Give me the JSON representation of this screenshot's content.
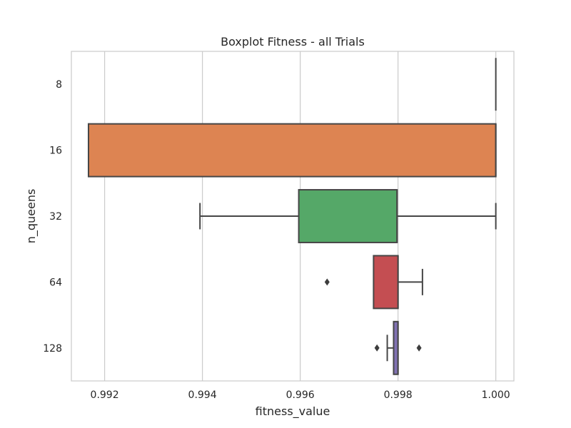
{
  "chart_data": {
    "type": "boxplot",
    "orientation": "horizontal",
    "title": "Boxplot Fitness - all Trials",
    "xlabel": "fitness_value",
    "ylabel": "n_queens",
    "xlim": [
      0.99132,
      1.00037
    ],
    "x_ticks": [
      "0.992",
      "0.994",
      "0.996",
      "0.998",
      "1.000"
    ],
    "x_tick_values": [
      0.992,
      0.994,
      0.996,
      0.998,
      1.0
    ],
    "grid": true,
    "categories": [
      "8",
      "16",
      "32",
      "64",
      "128"
    ],
    "series": [
      {
        "category": "8",
        "whisker_low": 1.0,
        "q1": 1.0,
        "median": 1.0,
        "q3": 1.0,
        "whisker_high": 1.0,
        "outliers": [],
        "color": "#4c72b0"
      },
      {
        "category": "16",
        "whisker_low": 0.99167,
        "q1": 0.99167,
        "median": 1.0,
        "q3": 1.0,
        "whisker_high": 1.0,
        "outliers": [],
        "color": "#dd8452"
      },
      {
        "category": "32",
        "whisker_low": 0.99395,
        "q1": 0.99597,
        "median": 0.99798,
        "q3": 0.99798,
        "whisker_high": 1.0,
        "outliers": [],
        "color": "#55a868"
      },
      {
        "category": "64",
        "whisker_low": 0.9975,
        "q1": 0.9975,
        "median": 0.998,
        "q3": 0.998,
        "whisker_high": 0.9985,
        "outliers": [
          0.99655
        ],
        "color": "#c44e52"
      },
      {
        "category": "128",
        "whisker_low": 0.99778,
        "q1": 0.99791,
        "median": 0.998,
        "q3": 0.998,
        "whisker_high": 0.998,
        "outliers": [
          0.99757,
          0.99843
        ],
        "color": "#8172b3"
      }
    ]
  }
}
